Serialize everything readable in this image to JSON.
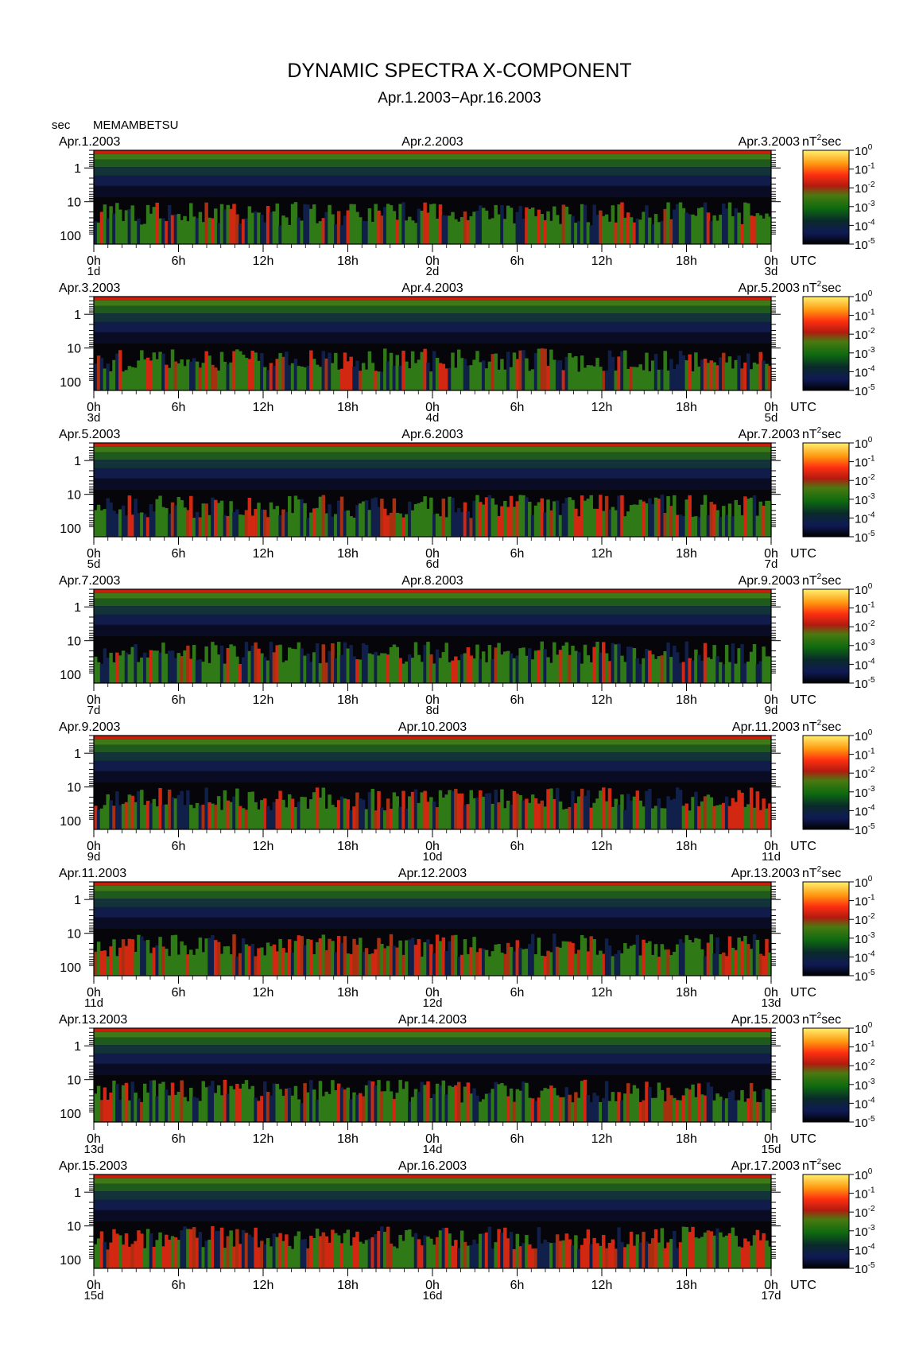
{
  "chart_data": {
    "type": "heatmap",
    "title": "DYNAMIC SPECTRA X-COMPONENT",
    "subtitle": "Apr.1.2003−Apr.16.2003",
    "y_unit_label": "sec",
    "station": "MEMAMBETSU",
    "colorbar_unit": "nT",
    "colorbar_unit_sup": "2",
    "colorbar_unit_suffix": "sec",
    "colorbar_ticks": [
      {
        "base": "10",
        "exp": "0"
      },
      {
        "base": "10",
        "exp": "-1"
      },
      {
        "base": "10",
        "exp": "-2"
      },
      {
        "base": "10",
        "exp": "-3"
      },
      {
        "base": "10",
        "exp": "-4"
      },
      {
        "base": "10",
        "exp": "-5"
      }
    ],
    "colorbar_range": [
      1e-05,
      1
    ],
    "colorbar_scale": "log",
    "y_ticks": [
      "1",
      "10",
      "100"
    ],
    "y_range_sec": [
      0.3,
      180
    ],
    "y_scale": "log",
    "x_ticks": [
      "0h",
      "6h",
      "12h",
      "18h",
      "0h",
      "6h",
      "12h",
      "18h",
      "0h"
    ],
    "x_unit": "UTC",
    "x_range_hours": [
      0,
      48
    ],
    "panels": [
      {
        "date_left": "Apr.1.2003",
        "date_mid": "Apr.2.2003",
        "date_right": "Apr.3.2003",
        "day_start": "1d",
        "day_mid": "2d",
        "day_end": "3d"
      },
      {
        "date_left": "Apr.3.2003",
        "date_mid": "Apr.4.2003",
        "date_right": "Apr.5.2003",
        "day_start": "3d",
        "day_mid": "4d",
        "day_end": "5d"
      },
      {
        "date_left": "Apr.5.2003",
        "date_mid": "Apr.6.2003",
        "date_right": "Apr.7.2003",
        "day_start": "5d",
        "day_mid": "6d",
        "day_end": "7d"
      },
      {
        "date_left": "Apr.7.2003",
        "date_mid": "Apr.8.2003",
        "date_right": "Apr.9.2003",
        "day_start": "7d",
        "day_mid": "8d",
        "day_end": "9d"
      },
      {
        "date_left": "Apr.9.2003",
        "date_mid": "Apr.10.2003",
        "date_right": "Apr.11.2003",
        "day_start": "9d",
        "day_mid": "10d",
        "day_end": "11d"
      },
      {
        "date_left": "Apr.11.2003",
        "date_mid": "Apr.12.2003",
        "date_right": "Apr.13.2003",
        "day_start": "11d",
        "day_mid": "12d",
        "day_end": "13d"
      },
      {
        "date_left": "Apr.13.2003",
        "date_mid": "Apr.14.2003",
        "date_right": "Apr.15.2003",
        "day_start": "13d",
        "day_mid": "14d",
        "day_end": "15d"
      },
      {
        "date_left": "Apr.15.2003",
        "date_mid": "Apr.16.2003",
        "date_right": "Apr.17.2003",
        "day_start": "15d",
        "day_mid": "16d",
        "day_end": "17d"
      }
    ]
  }
}
